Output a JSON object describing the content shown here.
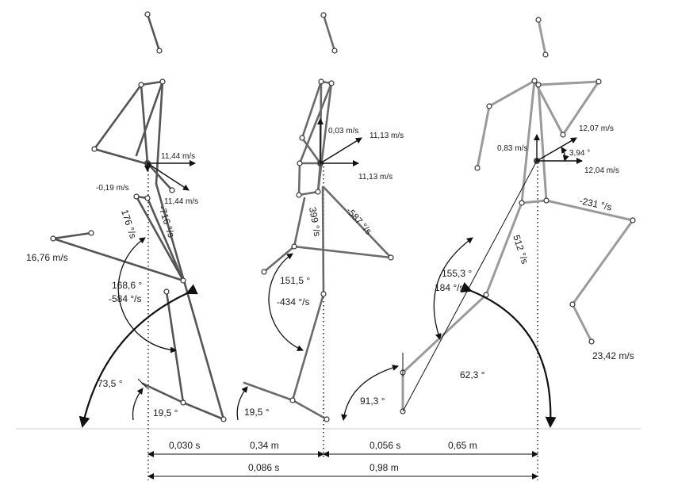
{
  "figure1": {
    "angle_knee": "168,6 °",
    "angvel_knee": "-584 °/s",
    "angvel_thigh_a": "176 °/s",
    "angvel_thigh_b": "-716 °/s",
    "angle_shank": "73,5 °",
    "angle_foot": "19,5 °",
    "speed_foot": "16,76 m/s",
    "speed_com_h1": "11,44 m/s",
    "speed_com_h2": "11,44 m/s",
    "speed_com_v": "-0,19 m/s"
  },
  "figure2": {
    "angle_knee": "151,5 °",
    "angvel_knee": "-434 °/s",
    "angvel_thigh_a": "399 °/s",
    "angvel_thigh_b": "-587 °/s",
    "angle_foot": "19,5 °",
    "speed_com_v": "0,03 m/s",
    "speed_com_res": "11,13 m/s",
    "speed_com_h": "11,13 m/s"
  },
  "figure3": {
    "angle_knee": "155,3 °",
    "angvel_knee": "184 °/s",
    "angvel_thigh": "512 °/s",
    "angvel_swing": "-231 °/s",
    "angle_trunk": "62,3 °",
    "angle_foot": "91,3 °",
    "speed_foot": "23,42 m/s",
    "speed_com_v": "0,83 m/s",
    "speed_com_res": "12,07 m/s",
    "speed_com_h": "12,04 m/s",
    "angle_com": "3,94 °"
  },
  "measures": {
    "t1": "0,030 s",
    "d1": "0,34 m",
    "t2": "0,056 s",
    "d2": "0,65 m",
    "t_total": "0,086 s",
    "d_total": "0,98 m"
  }
}
